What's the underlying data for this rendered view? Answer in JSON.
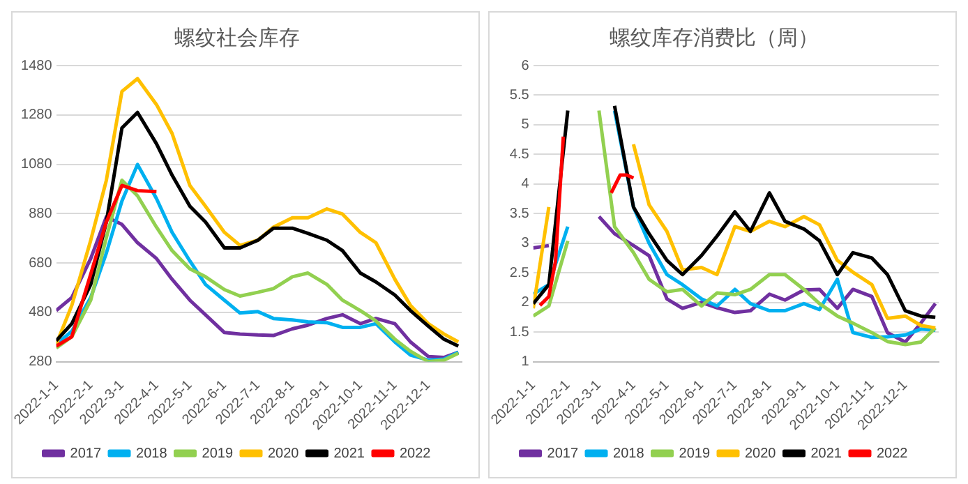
{
  "chart_data": [
    {
      "type": "line",
      "title": "螺纹社会库存",
      "x": [
        "2022-01-01",
        "2022-01-15",
        "2022-02-01",
        "2022-02-15",
        "2022-03-01",
        "2022-03-15",
        "2022-04-01",
        "2022-04-15",
        "2022-05-01",
        "2022-05-15",
        "2022-06-01",
        "2022-06-15",
        "2022-07-01",
        "2022-07-15",
        "2022-08-01",
        "2022-08-15",
        "2022-09-01",
        "2022-09-15",
        "2022-10-01",
        "2022-10-15",
        "2022-11-01",
        "2022-11-15",
        "2022-12-01",
        "2022-12-15",
        "2022-12-28"
      ],
      "xlim": [
        "2022-01-01",
        "2022-12-31"
      ],
      "xticks": [
        {
          "value": "2022-01-01",
          "label": "2022-1-1"
        },
        {
          "value": "2022-02-01",
          "label": "2022-2-1"
        },
        {
          "value": "2022-03-01",
          "label": "2022-3-1"
        },
        {
          "value": "2022-04-01",
          "label": "2022-4-1"
        },
        {
          "value": "2022-05-01",
          "label": "2022-5-1"
        },
        {
          "value": "2022-06-01",
          "label": "2022-6-1"
        },
        {
          "value": "2022-07-01",
          "label": "2022-7-1"
        },
        {
          "value": "2022-08-01",
          "label": "2022-8-1"
        },
        {
          "value": "2022-09-01",
          "label": "2022-9-1"
        },
        {
          "value": "2022-10-01",
          "label": "2022-10-1"
        },
        {
          "value": "2022-11-01",
          "label": "2022-11-1"
        },
        {
          "value": "2022-12-01",
          "label": "2022-12-1"
        }
      ],
      "ylim": [
        280,
        1480
      ],
      "yticks": [
        280,
        480,
        680,
        880,
        1080,
        1280,
        1480
      ],
      "grid": "y",
      "legend": "bottom",
      "series": [
        {
          "name": "2017",
          "color": "#7030a0",
          "values": [
            487,
            540,
            698,
            867,
            836,
            762,
            698,
            614,
            529,
            470,
            398,
            392,
            388,
            386,
            413,
            428,
            455,
            470,
            434,
            455,
            434,
            360,
            301,
            297,
            318
          ]
        },
        {
          "name": "2018",
          "color": "#00b0f0",
          "values": [
            350,
            403,
            540,
            720,
            931,
            1079,
            941,
            804,
            688,
            593,
            529,
            477,
            483,
            455,
            449,
            441,
            438,
            419,
            419,
            434,
            360,
            307,
            286,
            290,
            318
          ]
        },
        {
          "name": "2019",
          "color": "#92d050",
          "values": [
            335,
            381,
            529,
            783,
            1015,
            952,
            825,
            730,
            656,
            624,
            572,
            546,
            561,
            576,
            624,
            639,
            593,
            529,
            487,
            445,
            371,
            322,
            280,
            286,
            314
          ]
        },
        {
          "name": "2020",
          "color": "#ffc000",
          "values": [
            350,
            508,
            772,
            1015,
            1375,
            1427,
            1322,
            1205,
            994,
            910,
            804,
            751,
            772,
            825,
            863,
            863,
            899,
            878,
            804,
            762,
            614,
            508,
            434,
            392,
            360
          ]
        },
        {
          "name": "2021",
          "color": "#000000",
          "values": [
            365,
            434,
            593,
            846,
            1227,
            1290,
            1163,
            1036,
            910,
            846,
            741,
            741,
            772,
            821,
            821,
            800,
            772,
            730,
            639,
            603,
            550,
            487,
            424,
            371,
            343
          ]
        },
        {
          "name": "2022",
          "color": "#ff0000",
          "values": [
            343,
            381,
            635,
            846,
            994,
            973,
            969,
            null,
            null,
            null,
            null,
            null,
            null,
            null,
            null,
            null,
            null,
            null,
            null,
            null,
            null,
            null,
            null,
            null,
            null
          ]
        }
      ]
    },
    {
      "type": "line",
      "title": "螺纹库存消费比（周）",
      "x": [
        "2022-01-01",
        "2022-01-15",
        "2022-02-01",
        "2022-02-15",
        "2022-03-01",
        "2022-03-15",
        "2022-04-01",
        "2022-04-15",
        "2022-05-01",
        "2022-05-15",
        "2022-06-01",
        "2022-06-15",
        "2022-07-01",
        "2022-07-15",
        "2022-08-01",
        "2022-08-15",
        "2022-09-01",
        "2022-09-15",
        "2022-10-01",
        "2022-10-15",
        "2022-11-01",
        "2022-11-15",
        "2022-12-01",
        "2022-12-15",
        "2022-12-28"
      ],
      "xlim": [
        "2022-01-01",
        "2022-12-31"
      ],
      "xticks": [
        {
          "value": "2022-01-01",
          "label": "2022-1-1"
        },
        {
          "value": "2022-02-01",
          "label": "2022-2-1"
        },
        {
          "value": "2022-03-01",
          "label": "2022-3-1"
        },
        {
          "value": "2022-04-01",
          "label": "2022-4-1"
        },
        {
          "value": "2022-05-01",
          "label": "2022-5-1"
        },
        {
          "value": "2022-06-01",
          "label": "2022-6-1"
        },
        {
          "value": "2022-07-01",
          "label": "2022-7-1"
        },
        {
          "value": "2022-08-01",
          "label": "2022-8-1"
        },
        {
          "value": "2022-09-01",
          "label": "2022-9-1"
        },
        {
          "value": "2022-10-01",
          "label": "2022-10-1"
        },
        {
          "value": "2022-11-01",
          "label": "2022-11-1"
        },
        {
          "value": "2022-12-01",
          "label": "2022-12-1"
        }
      ],
      "ylim": [
        1,
        6
      ],
      "yticks": [
        1,
        1.5,
        2,
        2.5,
        3,
        3.5,
        4,
        4.5,
        5,
        5.5,
        6
      ],
      "grid": "y",
      "legend": "bottom",
      "series": [
        {
          "name": "2017",
          "color": "#7030a0",
          "values": [
            2.92,
            2.96,
            null,
            null,
            3.45,
            3.16,
            2.96,
            2.79,
            2.06,
            1.9,
            2.0,
            1.91,
            1.83,
            1.86,
            2.14,
            2.04,
            2.21,
            2.22,
            1.9,
            2.22,
            2.1,
            1.49,
            1.33,
            1.65,
            1.98
          ]
        },
        {
          "name": "2018",
          "color": "#00b0f0",
          "values": [
            2.14,
            2.3,
            3.28,
            null,
            null,
            5.24,
            3.61,
            3.0,
            2.47,
            2.3,
            2.06,
            1.94,
            2.22,
            1.98,
            1.86,
            1.86,
            1.98,
            1.88,
            2.39,
            1.49,
            1.41,
            1.42,
            1.45,
            1.55,
            1.53
          ]
        },
        {
          "name": "2019",
          "color": "#92d050",
          "values": [
            1.77,
            1.94,
            3.04,
            null,
            5.24,
            3.28,
            2.84,
            2.39,
            2.18,
            2.22,
            1.94,
            2.16,
            2.13,
            2.22,
            2.47,
            2.47,
            2.22,
            1.98,
            1.77,
            1.65,
            1.49,
            1.34,
            1.29,
            1.33,
            1.57
          ]
        },
        {
          "name": "2020",
          "color": "#ffc000",
          "values": [
            1.9,
            3.61,
            null,
            null,
            null,
            null,
            4.67,
            3.65,
            3.2,
            2.55,
            2.59,
            2.47,
            3.28,
            3.2,
            3.37,
            3.28,
            3.45,
            3.31,
            2.71,
            2.51,
            2.3,
            1.73,
            1.77,
            1.61,
            1.57
          ]
        },
        {
          "name": "2021",
          "color": "#000000",
          "values": [
            1.98,
            2.3,
            5.24,
            null,
            null,
            5.32,
            3.61,
            3.16,
            2.71,
            2.47,
            2.79,
            3.12,
            3.53,
            3.2,
            3.85,
            3.37,
            3.24,
            3.04,
            2.47,
            2.84,
            2.75,
            2.47,
            1.86,
            1.77,
            1.75
          ]
        },
        {
          "name": "2022",
          "color": "#ff0000",
          "x": [
            "2022-01-07",
            "2022-01-15",
            "2022-01-21",
            "2022-01-28",
            "2022-02-15",
            "2022-03-12",
            "2022-03-20",
            "2022-03-26",
            "2022-04-01"
          ],
          "values": [
            1.95,
            2.1,
            2.7,
            4.8,
            null,
            3.85,
            4.15,
            4.15,
            4.1
          ]
        }
      ]
    }
  ]
}
